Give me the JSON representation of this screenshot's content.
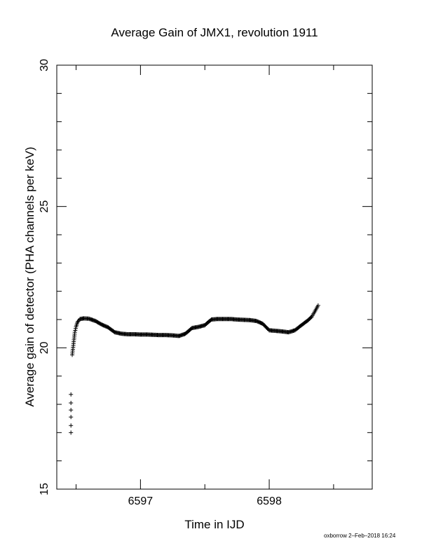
{
  "chart_data": {
    "type": "scatter",
    "title": "Average Gain of JMX1, revolution 1911",
    "xlabel": "Time in IJD",
    "ylabel": "Average gain of detector (PHA channels per keV)",
    "xlim": [
      6596.35,
      6598.8
    ],
    "ylim": [
      15,
      30
    ],
    "xticks_major": [
      6597,
      6598
    ],
    "xticks_minor": [
      6596.5,
      6597.5,
      6598.5
    ],
    "yticks_major": [
      15,
      20,
      25,
      30
    ],
    "yticks_minor": [
      16,
      17,
      18,
      19,
      21,
      22,
      23,
      24,
      26,
      27,
      28,
      29
    ],
    "grid": false,
    "marker": "+",
    "series": [
      {
        "x": [
          6596.46,
          6596.46,
          6596.46,
          6596.46,
          6596.46,
          6596.46,
          6596.47,
          6596.475,
          6596.48,
          6596.485,
          6596.49,
          6596.5,
          6596.51,
          6596.53,
          6596.56,
          6596.6,
          6596.65,
          6596.7,
          6596.75,
          6596.8,
          6596.85,
          6596.9,
          6596.95,
          6597.0,
          6597.05,
          6597.1,
          6597.15,
          6597.2,
          6597.25,
          6597.3,
          6597.35,
          6597.4,
          6597.45,
          6597.5,
          6597.55,
          6597.6,
          6597.65,
          6597.7,
          6597.75,
          6597.8,
          6597.85,
          6597.9,
          6597.95,
          6598.0,
          6598.05,
          6598.1,
          6598.15,
          6598.2,
          6598.25,
          6598.3,
          6598.33,
          6598.35,
          6598.38
        ],
        "y": [
          17.0,
          17.25,
          17.55,
          17.8,
          18.05,
          18.35,
          19.75,
          19.95,
          20.15,
          20.35,
          20.55,
          20.75,
          20.9,
          21.02,
          21.04,
          21.03,
          20.95,
          20.82,
          20.72,
          20.55,
          20.5,
          20.48,
          20.48,
          20.47,
          20.47,
          20.46,
          20.45,
          20.45,
          20.44,
          20.42,
          20.5,
          20.7,
          20.74,
          20.8,
          21.0,
          21.02,
          21.02,
          21.02,
          21.0,
          20.99,
          20.98,
          20.95,
          20.85,
          20.62,
          20.6,
          20.58,
          20.55,
          20.62,
          20.8,
          20.97,
          21.1,
          21.25,
          21.5
        ]
      }
    ]
  },
  "footer": "oxborrow  2–Feb–2018 16:24"
}
